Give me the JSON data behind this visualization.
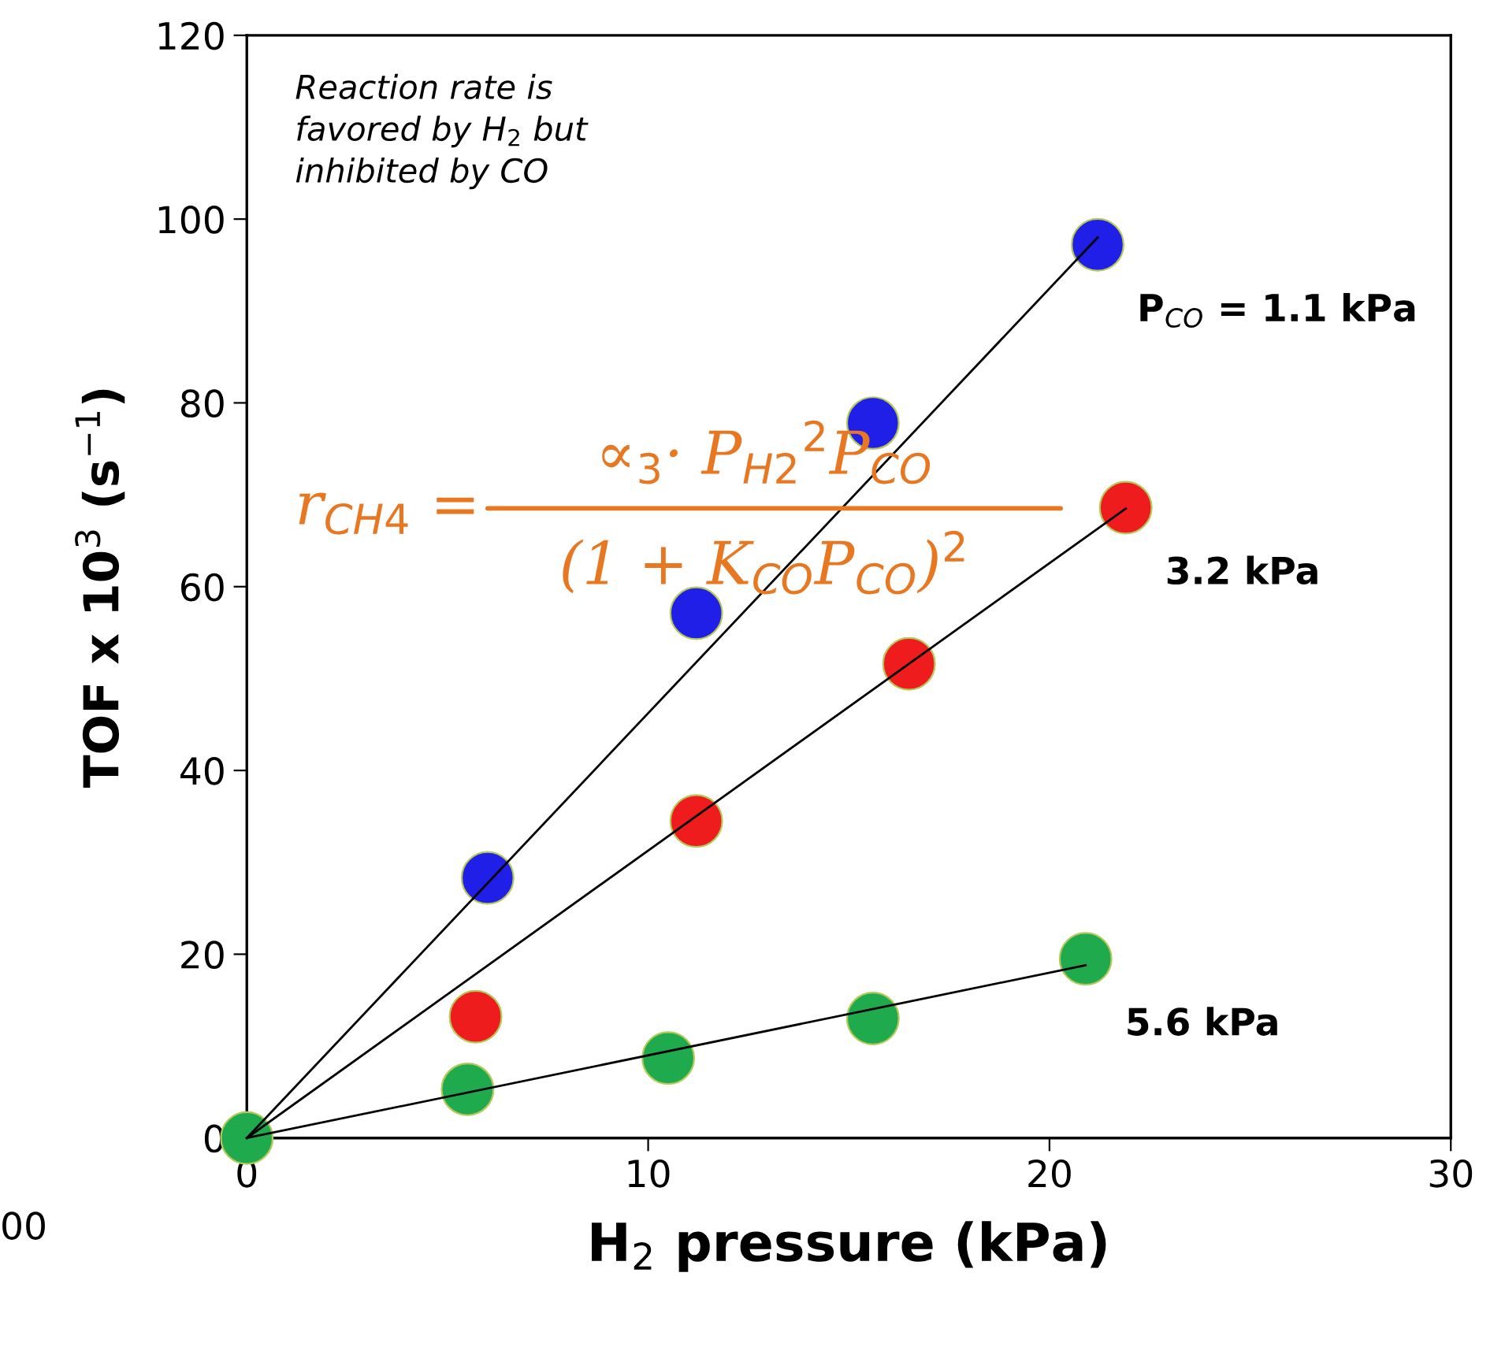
{
  "chart_data": {
    "type": "scatter",
    "xlabel": "H$_{2}$ pressure (kPa)",
    "ylabel": "TOF x 10$^{3}$ (s$^{−1}$)",
    "xlim": [
      0,
      30
    ],
    "xticks": [
      0,
      10,
      20,
      30
    ],
    "ylim": [
      0,
      120
    ],
    "yticks": [
      0,
      20,
      40,
      60,
      80,
      100,
      120
    ],
    "grid": false,
    "marker": "circle",
    "series": [
      {
        "name": "P$_{CO}$ = 1.1 kPa",
        "color": "#1f1fe8",
        "x": [
          6.0,
          11.2,
          15.6,
          21.2
        ],
        "values": [
          28.3,
          57.1,
          77.8,
          97.2
        ]
      },
      {
        "name": "3.2 kPa",
        "color": "#ee1c1c",
        "x": [
          5.7,
          11.2,
          16.5,
          21.9
        ],
        "values": [
          13.2,
          34.5,
          51.6,
          68.6
        ]
      },
      {
        "name": "5.6 kPa",
        "color": "#1faa4e",
        "x": [
          0,
          5.5,
          10.5,
          15.6,
          20.9
        ],
        "values": [
          0,
          5.3,
          8.7,
          13.0,
          19.5
        ]
      },
      {
        "type": "line",
        "color": "#000000",
        "x": [
          0,
          21.2
        ],
        "values": [
          0,
          98.0
        ],
        "marker": "none"
      },
      {
        "type": "line",
        "color": "#000000",
        "x": [
          0,
          21.9
        ],
        "values": [
          0,
          68.5
        ],
        "marker": "none"
      },
      {
        "type": "line",
        "color": "#000000",
        "x": [
          0,
          20.9
        ],
        "values": [
          0,
          18.8
        ],
        "marker": "none"
      }
    ],
    "annotations": [
      "Reaction rate is\nfavored by H$_{2}$ but\ninhibited by CO",
      "r$_{CH4}$ =",
      "∝$_{3}$· P$_{H2}$$^{2}$P$_{CO}$",
      "(1 + K$_{CO}$P$_{CO}$)$^{2}$",
      "00"
    ]
  }
}
